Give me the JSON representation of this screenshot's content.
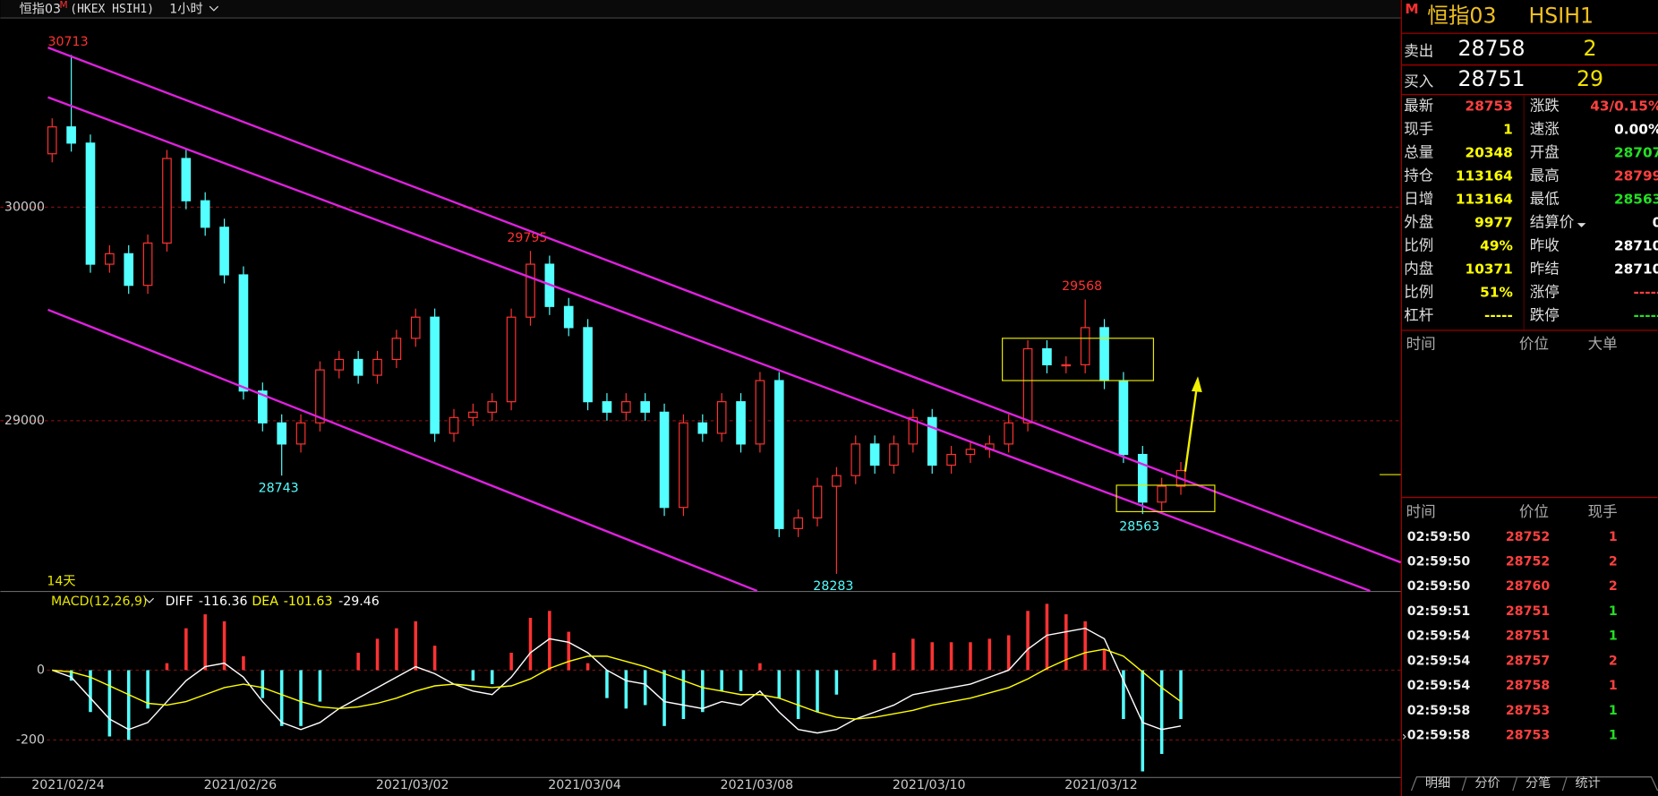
{
  "toolbar": {
    "symbol": "恒指03",
    "badge": "M",
    "exchange": "(HKEX HSIH1)",
    "period": "1小时"
  },
  "chart_data": [
    {
      "type": "candlestick",
      "period_label": "14天",
      "categories": [
        null,
        "2021/02/24",
        null,
        null,
        null,
        null,
        null,
        null,
        null,
        null,
        "2021/02/26",
        null,
        null,
        null,
        null,
        null,
        null,
        null,
        null,
        "2021/03/02",
        null,
        null,
        null,
        null,
        null,
        null,
        null,
        null,
        "2021/03/04",
        null,
        null,
        null,
        null,
        null,
        null,
        null,
        null,
        "2021/03/08",
        null,
        null,
        null,
        null,
        null,
        null,
        null,
        null,
        "2021/03/10",
        null,
        null,
        null,
        null,
        null,
        null,
        null,
        null,
        "2021/03/12",
        null,
        null,
        null,
        null
      ],
      "open": [
        30250,
        30376,
        30300,
        29733,
        29782,
        29634,
        29832,
        30228,
        30030,
        29906,
        29683,
        29139,
        28990,
        28891,
        28990,
        29238,
        29287,
        29213,
        29287,
        29386,
        29485,
        28941,
        29015,
        29040,
        29089,
        29485,
        29733,
        29535,
        29436,
        29089,
        29040,
        29089,
        29040,
        28594,
        28990,
        28941,
        29089,
        28891,
        29188,
        28495,
        28545,
        28693,
        28743,
        28891,
        28792,
        28891,
        29015,
        28792,
        28842,
        28866,
        28891,
        28990,
        29337,
        29262,
        29262,
        29436,
        29188,
        28842,
        28619,
        28693
      ],
      "high": [
        30416,
        30713,
        30340,
        29822,
        29822,
        29872,
        30268,
        30268,
        30070,
        29946,
        29723,
        29179,
        29030,
        29030,
        29278,
        29327,
        29327,
        29327,
        29426,
        29525,
        29525,
        29055,
        29080,
        29129,
        29525,
        29795,
        29773,
        29575,
        29476,
        29129,
        29129,
        29129,
        29080,
        29030,
        29030,
        29129,
        29129,
        29228,
        29228,
        28585,
        28733,
        28783,
        28931,
        28931,
        28931,
        29055,
        29055,
        28882,
        28906,
        28931,
        29030,
        29377,
        29377,
        29302,
        29568,
        29476,
        29228,
        28882,
        28733,
        28807
      ],
      "low": [
        30210,
        30260,
        29693,
        29693,
        29594,
        29594,
        29792,
        29990,
        29866,
        29643,
        29099,
        28950,
        28743,
        28851,
        28950,
        29198,
        29173,
        29173,
        29247,
        29346,
        28901,
        28901,
        28975,
        29000,
        29049,
        29445,
        29495,
        29396,
        29049,
        29000,
        29000,
        29000,
        28554,
        28554,
        28901,
        28901,
        28851,
        28851,
        28455,
        28455,
        28505,
        28283,
        28703,
        28752,
        28752,
        28851,
        28752,
        28752,
        28802,
        28826,
        28851,
        28950,
        29222,
        29222,
        29222,
        29148,
        28802,
        28563,
        28579,
        28653
      ],
      "close": [
        30376,
        30300,
        29733,
        29782,
        29634,
        29832,
        30228,
        30030,
        29906,
        29683,
        29139,
        28990,
        28891,
        28990,
        29238,
        29287,
        29213,
        29287,
        29386,
        29485,
        28941,
        29015,
        29040,
        29089,
        29485,
        29733,
        29535,
        29436,
        29089,
        29040,
        29089,
        29040,
        28594,
        28990,
        28941,
        29089,
        28891,
        29188,
        28495,
        28545,
        28693,
        28743,
        28891,
        28792,
        28891,
        29015,
        28792,
        28842,
        28866,
        28891,
        28990,
        29337,
        29262,
        29262,
        29436,
        29188,
        28842,
        28619,
        28693,
        28767
      ],
      "up_color": "#ff3232",
      "down_color": "#54ffff",
      "ylim": [
        28203,
        30886
      ],
      "yticks": [
        29000,
        30000
      ],
      "grid": true,
      "annotations": [
        {
          "value": 30713,
          "index": 1
        },
        {
          "value": 28743,
          "index": 12
        },
        {
          "value": 29795,
          "index": 25
        },
        {
          "value": 28283,
          "index": 41
        },
        {
          "value": 29568,
          "index": 54
        },
        {
          "value": 28563,
          "index": 57
        }
      ]
    },
    {
      "type": "macd",
      "title": "MACD(12,26,9)",
      "series": [
        {
          "name": "DIFF",
          "legend_value": "-116.36",
          "color": "#ffffff",
          "values": [
            0,
            -20,
            -80,
            -140,
            -170,
            -150,
            -90,
            -30,
            10,
            20,
            -20,
            -90,
            -150,
            -170,
            -150,
            -110,
            -80,
            -50,
            -20,
            10,
            -10,
            -40,
            -60,
            -70,
            -20,
            50,
            90,
            80,
            50,
            0,
            -30,
            -40,
            -90,
            -100,
            -110,
            -90,
            -100,
            -60,
            -120,
            -170,
            -180,
            -170,
            -140,
            -120,
            -100,
            -70,
            -60,
            -50,
            -40,
            -20,
            0,
            60,
            100,
            110,
            120,
            90,
            -30,
            -150,
            -170,
            -160
          ]
        },
        {
          "name": "DEA",
          "legend_value": "-101.63",
          "color": "#ffff00",
          "values": [
            0,
            -5,
            -20,
            -45,
            -70,
            -95,
            -100,
            -90,
            -70,
            -50,
            -40,
            -50,
            -70,
            -90,
            -105,
            -110,
            -105,
            -95,
            -80,
            -60,
            -45,
            -40,
            -45,
            -50,
            -45,
            -25,
            5,
            25,
            40,
            40,
            25,
            10,
            -10,
            -30,
            -50,
            -60,
            -70,
            -70,
            -80,
            -100,
            -120,
            -135,
            -140,
            -135,
            -125,
            -115,
            -100,
            -90,
            -80,
            -65,
            -50,
            -25,
            5,
            30,
            50,
            60,
            40,
            -5,
            -50,
            -90
          ]
        },
        {
          "legend_value": "-29.46",
          "up_color": "#ff3232",
          "down_color": "#54ffff",
          "values": [
            0,
            -30,
            -120,
            -190,
            -200,
            -110,
            20,
            120,
            160,
            140,
            40,
            -80,
            -160,
            -160,
            -90,
            0,
            50,
            90,
            120,
            140,
            70,
            0,
            -30,
            -40,
            50,
            150,
            170,
            110,
            20,
            -80,
            -110,
            -100,
            -160,
            -140,
            -120,
            -60,
            -60,
            20,
            -80,
            -140,
            -120,
            -70,
            0,
            30,
            50,
            90,
            80,
            80,
            80,
            90,
            100,
            170,
            190,
            160,
            140,
            60,
            -140,
            -290,
            -240,
            -140
          ]
        }
      ],
      "ylim": [
        -306,
        224
      ],
      "yticks": [
        -200,
        0
      ],
      "grid": true
    }
  ],
  "quote": {
    "badge": "M",
    "name": "恒指03",
    "code": "HSIH1",
    "ask": {
      "label": "卖出",
      "price": "28758",
      "size": "2"
    },
    "bid": {
      "label": "买入",
      "price": "28751",
      "size": "29"
    },
    "stats_left": [
      {
        "label": "最新",
        "value": "28753",
        "color": "#ff4040"
      },
      {
        "label": "现手",
        "value": "1",
        "color": "#ffff00"
      },
      {
        "label": "总量",
        "value": "20348",
        "color": "#ffff00"
      },
      {
        "label": "持仓",
        "value": "113164",
        "color": "#ffff00"
      },
      {
        "label": "日增",
        "value": "113164",
        "color": "#ffff00"
      },
      {
        "label": "外盘",
        "value": "9977",
        "color": "#ffff00"
      },
      {
        "label": "比例",
        "value": "49%",
        "color": "#ffff00"
      },
      {
        "label": "内盘",
        "value": "10371",
        "color": "#ffff00"
      },
      {
        "label": "比例",
        "value": "51%",
        "color": "#ffff00"
      },
      {
        "label": "杠杆",
        "value": "-----",
        "color": "#ffff00"
      }
    ],
    "stats_right": [
      {
        "label": "涨跌",
        "value": "43/0.15%",
        "color": "#ff4040"
      },
      {
        "label": "速涨",
        "value": "0.00%",
        "color": "#ffffff"
      },
      {
        "label": "开盘",
        "value": "28707",
        "color": "#22e022"
      },
      {
        "label": "最高",
        "value": "28799",
        "color": "#ff4040"
      },
      {
        "label": "最低",
        "value": "28563",
        "color": "#22e022"
      },
      {
        "label": "结算价",
        "value": "0",
        "color": "#ffffff"
      },
      {
        "label": "昨收",
        "value": "28710",
        "color": "#ffffff"
      },
      {
        "label": "昨结",
        "value": "28710",
        "color": "#ffffff"
      },
      {
        "label": "涨停",
        "value": "-----",
        "color": "#ff4040"
      },
      {
        "label": "跌停",
        "value": "-----",
        "color": "#22e022"
      }
    ]
  },
  "big_orders": {
    "headers": [
      "时间",
      "价位",
      "大单"
    ]
  },
  "trades": {
    "headers": [
      "时间",
      "价位",
      "现手"
    ],
    "rows": [
      {
        "time": "02:59:50",
        "price": "28752",
        "volume": "1",
        "color": "#ff4040"
      },
      {
        "time": "02:59:50",
        "price": "28752",
        "volume": "2",
        "color": "#ff4040"
      },
      {
        "time": "02:59:50",
        "price": "28760",
        "volume": "2",
        "color": "#ff4040"
      },
      {
        "time": "02:59:51",
        "price": "28751",
        "volume": "1",
        "color": "#22e022"
      },
      {
        "time": "02:59:54",
        "price": "28751",
        "volume": "1",
        "color": "#22e022"
      },
      {
        "time": "02:59:54",
        "price": "28757",
        "volume": "2",
        "color": "#ff4040"
      },
      {
        "time": "02:59:54",
        "price": "28758",
        "volume": "1",
        "color": "#ff4040"
      },
      {
        "time": "02:59:58",
        "price": "28753",
        "volume": "1",
        "color": "#22e022"
      },
      {
        "time": "02:59:58",
        "price": "28753",
        "volume": "1",
        "color": "#22e022"
      }
    ]
  },
  "tabs": [
    "明细",
    "分价",
    "分笔",
    "统计"
  ]
}
